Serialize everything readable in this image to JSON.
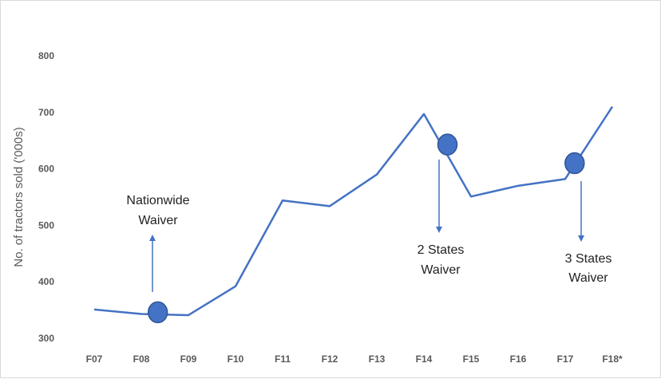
{
  "chart_data": {
    "type": "line",
    "categories": [
      "F07",
      "F08",
      "F09",
      "F10",
      "F11",
      "F12",
      "F13",
      "F14",
      "F15",
      "F16",
      "F17",
      "F18*"
    ],
    "series": [
      {
        "values": [
          351,
          343,
          341,
          392,
          544,
          534,
          590,
          697,
          551,
          570,
          582,
          710
        ]
      }
    ],
    "ylabel": "No. of tractors sold ('000s)",
    "xlabel": "",
    "ylim": [
      300,
      800
    ],
    "yticks": [
      300,
      400,
      500,
      600,
      700,
      800
    ],
    "grid": false,
    "legend": "none",
    "colors": {
      "line": "#4472c4",
      "marker": "#4472c4",
      "marker_stroke": "#2f5597"
    },
    "markers": [
      {
        "category_pos": 1.35,
        "value": 346
      },
      {
        "category_pos": 7.5,
        "value": 643
      },
      {
        "category_pos": 10.2,
        "value": 610
      }
    ],
    "annotations": [
      {
        "id": "nationwide",
        "lines": [
          "Nationwide",
          "Waiver"
        ],
        "arrow": "up"
      },
      {
        "id": "two-states",
        "lines": [
          "2 States",
          "Waiver"
        ],
        "arrow": "down"
      },
      {
        "id": "three-states",
        "lines": [
          "3 States",
          "Waiver"
        ],
        "arrow": "down"
      }
    ]
  }
}
